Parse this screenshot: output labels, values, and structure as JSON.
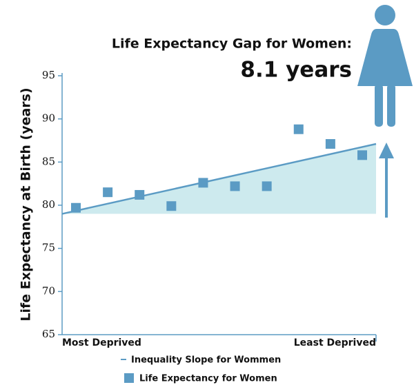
{
  "chart_data": {
    "type": "scatter",
    "title": "Life Expectancy Gap for Women:",
    "subtitle": "8.1 years",
    "y_label": "Life Expectancy at Birth (years)",
    "x_labels": [
      "Most Deprived",
      "Least Deprived"
    ],
    "ylim": [
      65,
      95
    ],
    "yticks": [
      65,
      70,
      75,
      80,
      85,
      90,
      95
    ],
    "series": [
      {
        "name": "Life Expectancy for Women",
        "color": "#5b9bc4",
        "values": [
          79.7,
          81.5,
          81.2,
          79.9,
          82.6,
          82.2,
          82.2,
          88.8,
          87.1,
          85.8
        ]
      }
    ],
    "trend": {
      "name": "Inequality Slope for Wommen",
      "color": "#5b9bc4",
      "fill": "#cdeaee",
      "values": [
        79.0,
        87.1
      ]
    }
  }
}
